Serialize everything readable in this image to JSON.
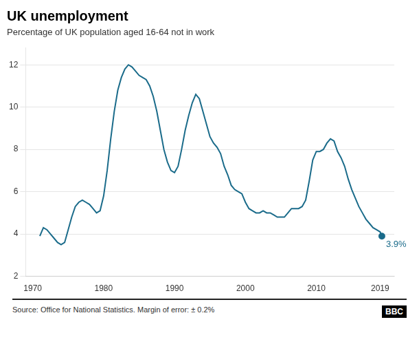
{
  "chart_data": {
    "type": "line",
    "title": "UK unemployment",
    "subtitle": "Percentage of UK population aged 16-64 not in work",
    "source": "Source: Office for National Statistics.  Margin of error: ± 0.2%",
    "logo": "BBC",
    "annotation": "3.9%",
    "color": "#1a6b8a",
    "grid": true,
    "xlim": [
      1969,
      2021
    ],
    "xticks": [
      1970,
      1980,
      1990,
      2000,
      2010,
      2019
    ],
    "ylim": [
      2,
      12.8
    ],
    "yticks": [
      2,
      4,
      6,
      8,
      10,
      12
    ],
    "x": [
      1971.0,
      1971.5,
      1972.0,
      1972.5,
      1973.0,
      1973.5,
      1974.0,
      1974.5,
      1975.0,
      1975.5,
      1976.0,
      1976.5,
      1977.0,
      1977.5,
      1978.0,
      1978.5,
      1979.0,
      1979.5,
      1980.0,
      1980.5,
      1981.0,
      1981.5,
      1982.0,
      1982.5,
      1983.0,
      1983.5,
      1984.0,
      1984.5,
      1985.0,
      1985.5,
      1986.0,
      1986.5,
      1987.0,
      1987.5,
      1988.0,
      1988.5,
      1989.0,
      1989.5,
      1990.0,
      1990.5,
      1991.0,
      1991.5,
      1992.0,
      1992.5,
      1993.0,
      1993.5,
      1994.0,
      1994.5,
      1995.0,
      1995.5,
      1996.0,
      1996.5,
      1997.0,
      1997.5,
      1998.0,
      1998.5,
      1999.0,
      1999.5,
      2000.0,
      2000.5,
      2001.0,
      2001.5,
      2002.0,
      2002.5,
      2003.0,
      2003.5,
      2004.0,
      2004.5,
      2005.0,
      2005.5,
      2006.0,
      2006.5,
      2007.0,
      2007.5,
      2008.0,
      2008.5,
      2009.0,
      2009.5,
      2010.0,
      2010.5,
      2011.0,
      2011.5,
      2012.0,
      2012.5,
      2013.0,
      2013.5,
      2014.0,
      2014.5,
      2015.0,
      2015.5,
      2016.0,
      2016.5,
      2017.0,
      2017.5,
      2018.0,
      2018.5,
      2019.0,
      2019.25
    ],
    "values": [
      3.9,
      4.3,
      4.2,
      4.0,
      3.8,
      3.6,
      3.5,
      3.6,
      4.2,
      4.8,
      5.3,
      5.5,
      5.6,
      5.5,
      5.4,
      5.2,
      5.0,
      5.1,
      5.8,
      7.0,
      8.5,
      9.8,
      10.8,
      11.4,
      11.8,
      12.0,
      11.9,
      11.7,
      11.5,
      11.4,
      11.3,
      11.0,
      10.5,
      9.8,
      8.9,
      8.0,
      7.4,
      7.0,
      6.9,
      7.2,
      8.0,
      8.9,
      9.6,
      10.2,
      10.6,
      10.4,
      9.8,
      9.2,
      8.6,
      8.3,
      8.1,
      7.8,
      7.2,
      6.8,
      6.3,
      6.1,
      6.0,
      5.9,
      5.5,
      5.2,
      5.1,
      5.0,
      5.0,
      5.1,
      5.0,
      5.0,
      4.9,
      4.8,
      4.8,
      4.8,
      5.0,
      5.2,
      5.2,
      5.2,
      5.3,
      5.6,
      6.5,
      7.5,
      7.9,
      7.9,
      8.0,
      8.3,
      8.5,
      8.4,
      7.9,
      7.6,
      7.2,
      6.6,
      6.1,
      5.7,
      5.3,
      5.0,
      4.7,
      4.5,
      4.3,
      4.2,
      4.1,
      3.9
    ]
  }
}
